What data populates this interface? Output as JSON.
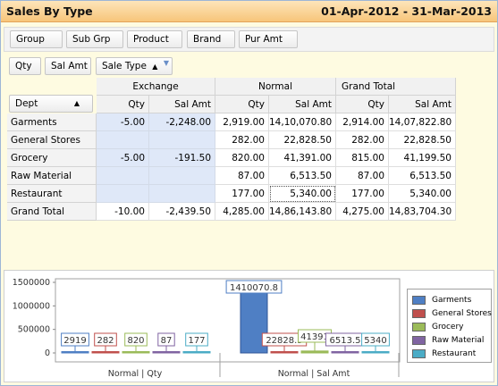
{
  "title": "Sales By Type",
  "date_range": "01-Apr-2012 - 31-Mar-2013",
  "filter_fields": [
    "Group",
    "Sub Grp",
    "Product",
    "Brand",
    "Pur Amt"
  ],
  "data_fields": [
    "Qty",
    "Sal Amt"
  ],
  "column_field": "Sale Type",
  "row_field": "Dept",
  "column_groups": [
    "Exchange",
    "Normal",
    "Grand Total"
  ],
  "measure_headers": [
    "Qty",
    "Sal Amt",
    "Qty",
    "Sal Amt",
    "Qty",
    "Sal Amt"
  ],
  "rows": [
    {
      "label": "Garments",
      "values": [
        "-5.00",
        "-2,248.00",
        "2,919.00",
        "14,10,070.80",
        "2,914.00",
        "14,07,822.80"
      ]
    },
    {
      "label": "General Stores",
      "values": [
        "",
        "",
        "282.00",
        "22,828.50",
        "282.00",
        "22,828.50"
      ]
    },
    {
      "label": "Grocery",
      "values": [
        "-5.00",
        "-191.50",
        "820.00",
        "41,391.00",
        "815.00",
        "41,199.50"
      ]
    },
    {
      "label": "Raw Material",
      "values": [
        "",
        "",
        "87.00",
        "6,513.50",
        "87.00",
        "6,513.50"
      ]
    },
    {
      "label": "Restaurant",
      "values": [
        "",
        "",
        "177.00",
        "5,340.00",
        "177.00",
        "5,340.00"
      ]
    },
    {
      "label": "Grand Total",
      "values": [
        "-10.00",
        "-2,439.50",
        "4,285.00",
        "14,86,143.80",
        "4,275.00",
        "14,83,704.30"
      ]
    }
  ],
  "chart_data": {
    "type": "bar",
    "categories": [
      "Normal | Qty",
      "Normal | Sal Amt"
    ],
    "ylim": [
      0,
      1500000
    ],
    "yticks": [
      0,
      500000,
      1000000,
      1500000
    ],
    "series": [
      {
        "name": "Garments",
        "color": "#4f7fc4",
        "values": [
          2919,
          1410070.8
        ],
        "labels": [
          "2919",
          "1410070.8"
        ]
      },
      {
        "name": "General Stores",
        "color": "#c0504d",
        "values": [
          282,
          22828.5
        ],
        "labels": [
          "282",
          "22828.5"
        ]
      },
      {
        "name": "Grocery",
        "color": "#9bbb59",
        "values": [
          820,
          41391
        ],
        "labels": [
          "820",
          "41391"
        ]
      },
      {
        "name": "Raw Material",
        "color": "#8064a2",
        "values": [
          87,
          6513.5
        ],
        "labels": [
          "87",
          "6513.5"
        ]
      },
      {
        "name": "Restaurant",
        "color": "#4bacc6",
        "values": [
          177,
          5340
        ],
        "labels": [
          "177",
          "5340"
        ]
      }
    ]
  }
}
